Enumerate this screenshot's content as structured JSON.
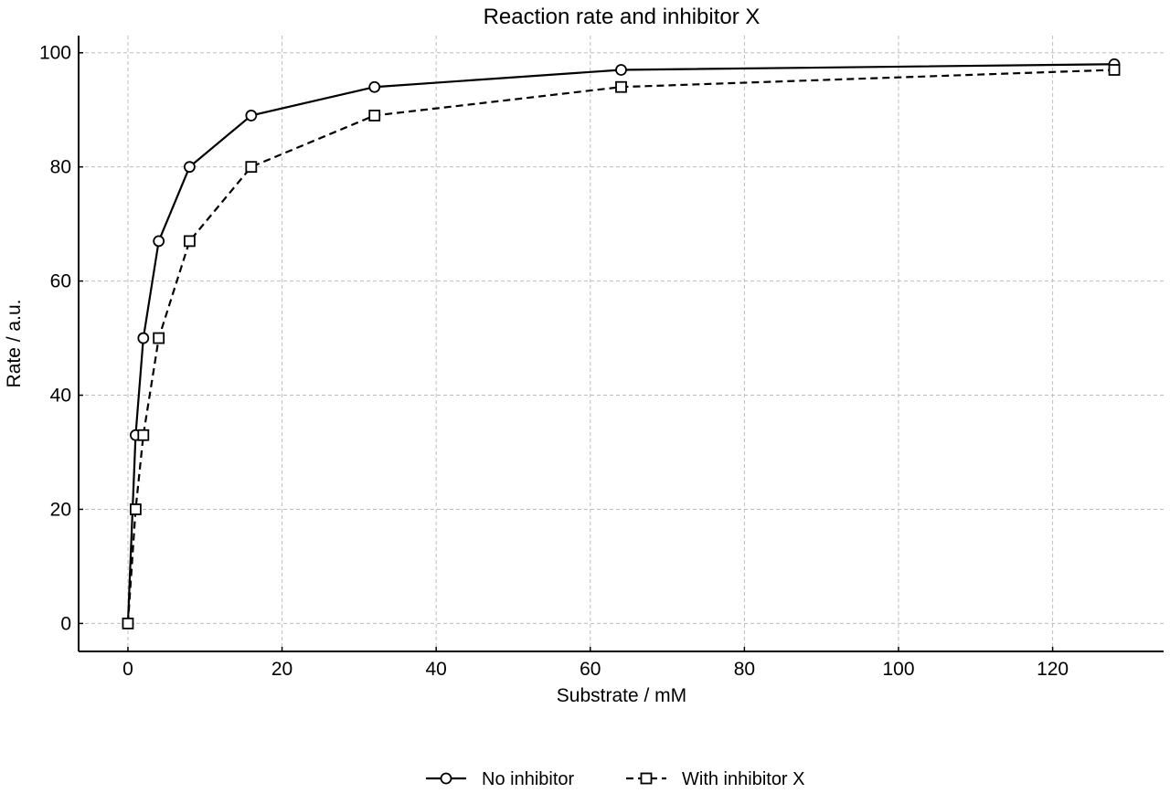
{
  "chart_data": {
    "type": "line",
    "title": "Reaction rate and inhibitor X",
    "xlabel": "Substrate / mM",
    "ylabel": "Rate / a.u.",
    "xlim": [
      -6.4,
      134.4
    ],
    "ylim": [
      -4.9,
      103
    ],
    "xticks": [
      0,
      20,
      40,
      60,
      80,
      100,
      120
    ],
    "yticks": [
      0,
      20,
      40,
      60,
      80,
      100
    ],
    "grid": true,
    "legend_position": "bottom-center",
    "series": [
      {
        "name": "No inhibitor",
        "marker": "circle",
        "line_style": "solid",
        "color": "#000000",
        "x": [
          0,
          1,
          2,
          4,
          8,
          16,
          32,
          64,
          128
        ],
        "y": [
          0,
          33,
          50,
          67,
          80,
          89,
          94,
          97,
          98
        ]
      },
      {
        "name": "With inhibitor X",
        "marker": "square",
        "line_style": "dashed",
        "color": "#000000",
        "x": [
          0,
          1,
          2,
          4,
          8,
          16,
          32,
          64,
          128
        ],
        "y": [
          0,
          20,
          33,
          50,
          67,
          80,
          89,
          94,
          97
        ]
      }
    ]
  }
}
